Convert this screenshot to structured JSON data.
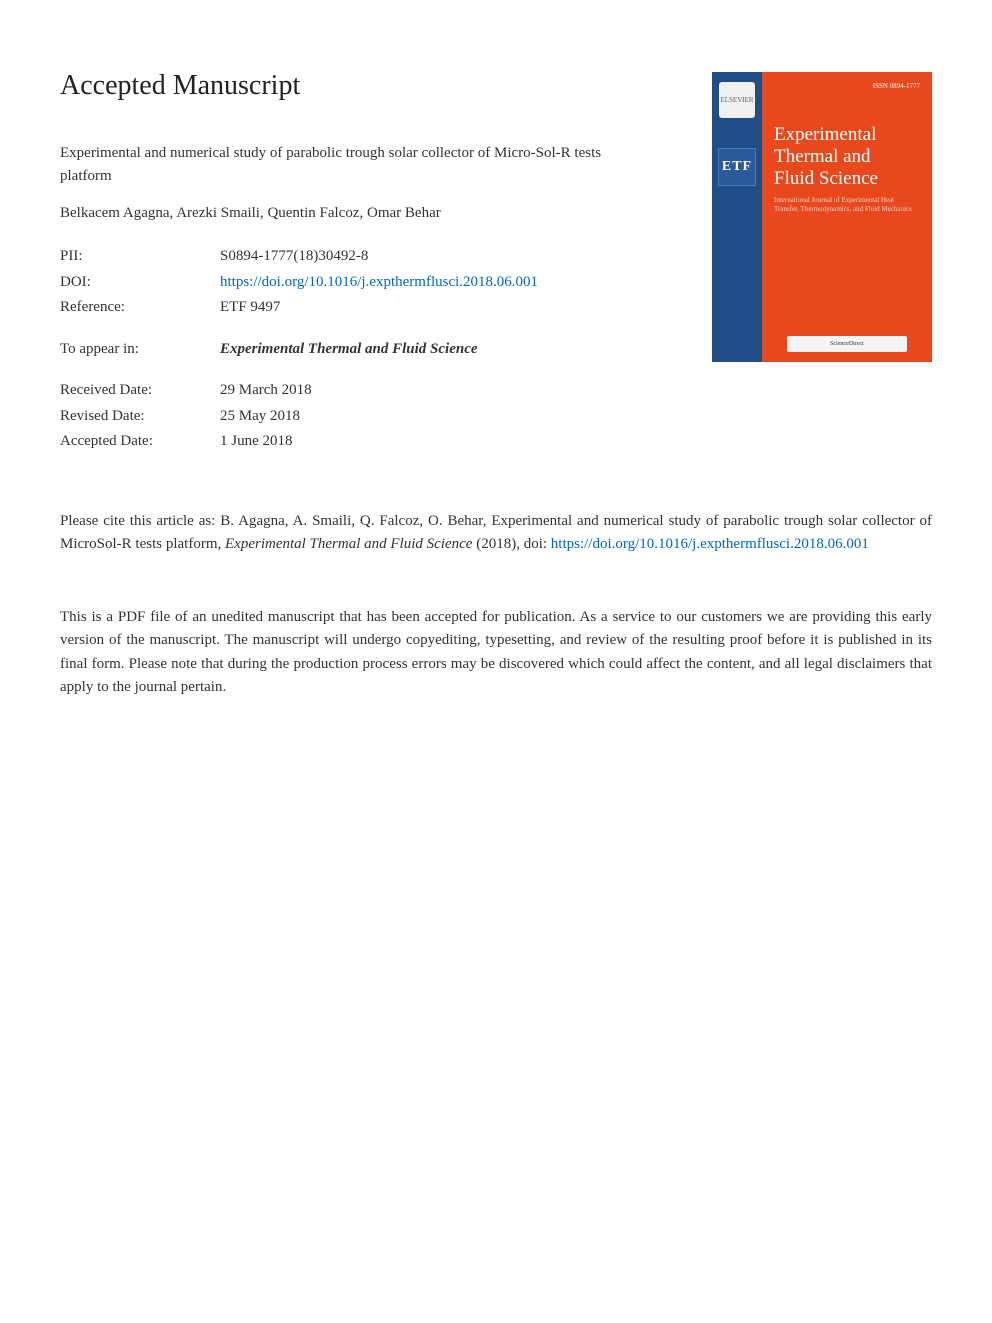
{
  "heading": "Accepted Manuscript",
  "article": {
    "title": "Experimental and numerical study of parabolic trough solar collector of Micro-Sol-R tests platform",
    "authors": "Belkacem Agagna, Arezki Smaili, Quentin Falcoz, Omar Behar"
  },
  "meta": {
    "pii_label": "PII:",
    "pii_value": "S0894-1777(18)30492-8",
    "doi_label": "DOI:",
    "doi_value": "https://doi.org/10.1016/j.expthermflusci.2018.06.001",
    "reference_label": "Reference:",
    "reference_value": "ETF 9497",
    "appear_label": "To appear in:",
    "appear_value": "Experimental Thermal and Fluid Science",
    "received_label": "Received Date:",
    "received_value": "29 March 2018",
    "revised_label": "Revised Date:",
    "revised_value": "25 May 2018",
    "accepted_label": "Accepted Date:",
    "accepted_value": "1 June 2018"
  },
  "citation": {
    "prefix": "Please cite this article as: B. Agagna, A. Smaili, Q. Falcoz, O. Behar, Experimental and numerical study of parabolic trough solar collector of MicroSol-R tests platform, ",
    "journal": "Experimental Thermal and Fluid Science",
    "year": " (2018), doi: ",
    "link": "https://doi.org/10.1016/j.expthermflusci.2018.06.001"
  },
  "disclaimer": "This is a PDF file of an unedited manuscript that has been accepted for publication. As a service to our customers we are providing this early version of the manuscript. The manuscript will undergo copyediting, typesetting, and review of the resulting proof before it is published in its final form. Please note that during the production process errors may be discovered which could affect the content, and all legal disclaimers that apply to the journal pertain.",
  "cover": {
    "issn": "ISSN 0894-1777",
    "title_line1": "Experimental",
    "title_line2": "Thermal and",
    "title_line3": "Fluid Science",
    "subtitle": "International Journal of Experimental Heat Transfer, Thermodynamics, and Fluid Mechanics",
    "elsevier": "ELSEVIER",
    "etf": "ETF",
    "sciencedirect": "ScienceDirect",
    "colors": {
      "cover_bg": "#e8481b",
      "sidebar_bg": "#1e4d8a",
      "text": "#ffffff"
    }
  }
}
